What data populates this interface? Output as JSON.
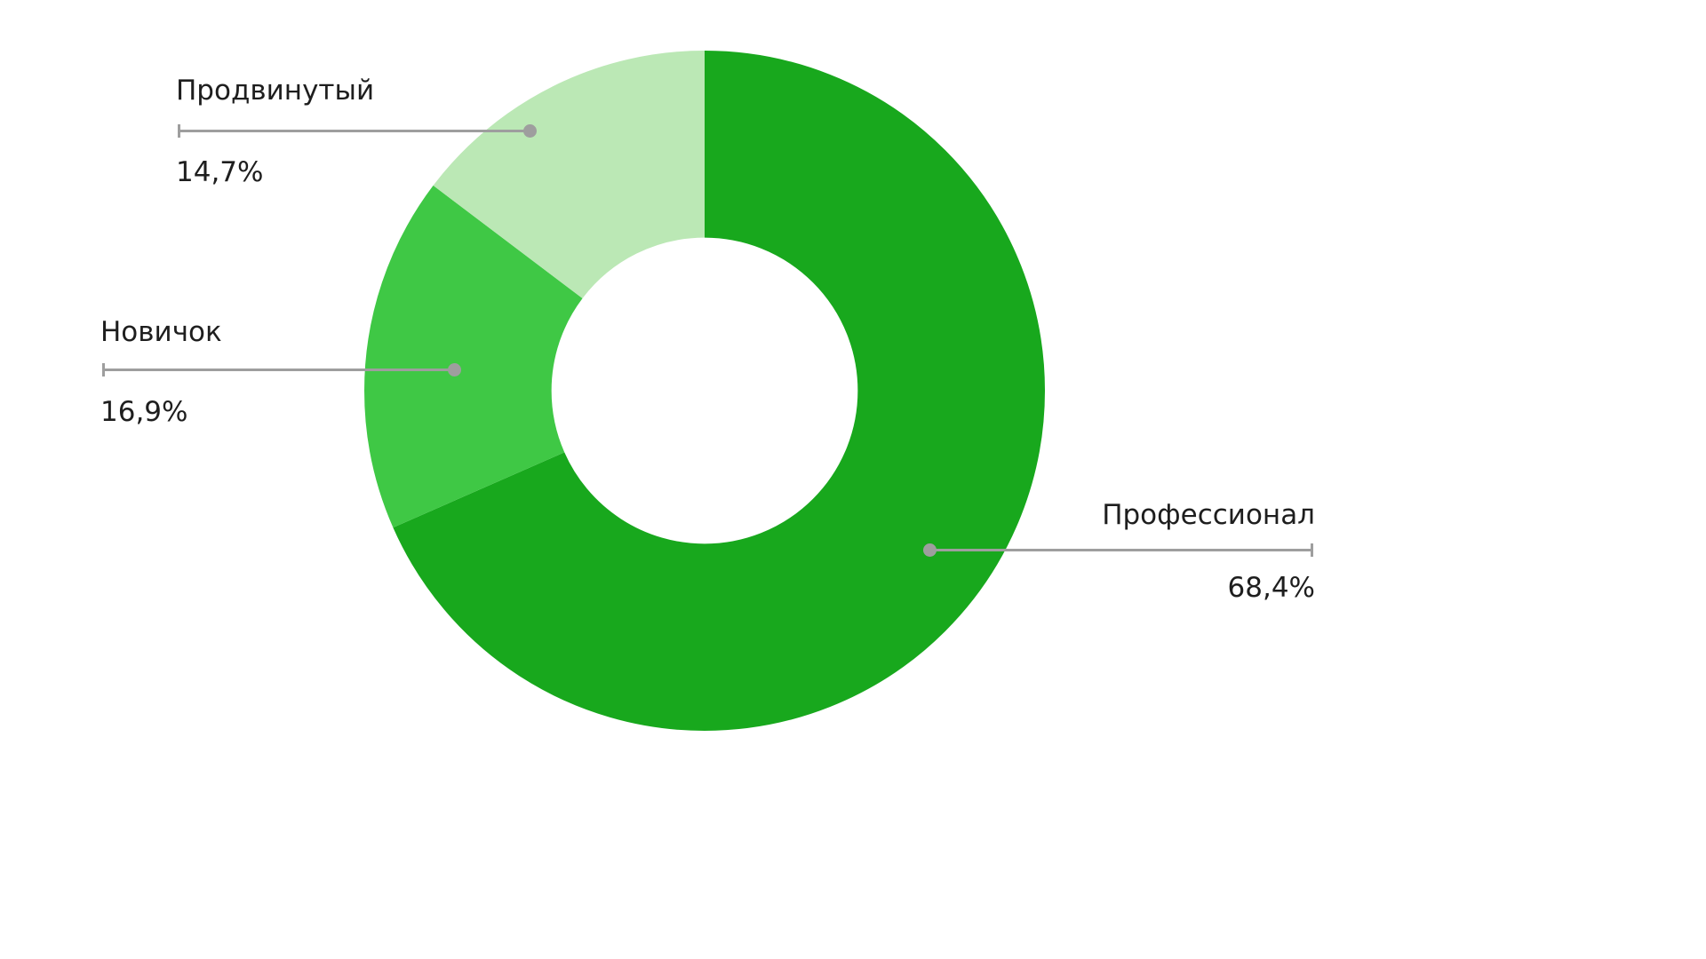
{
  "chart_data": {
    "type": "pie",
    "subtype": "donut",
    "title": "",
    "categories": [
      "Профессионал",
      "Новичок",
      "Продвинутый"
    ],
    "values": [
      68.4,
      16.9,
      14.7
    ],
    "unit": "%",
    "decimal_separator": ",",
    "start_angle_deg": 0,
    "direction": "clockwise",
    "inner_radius_ratio": 0.45,
    "legend_position": "external-callouts",
    "callout_line_color": "#9e9e9e",
    "text_color": "#1e1e1e",
    "slices": [
      {
        "label": "Профессионал",
        "value": 68.4,
        "value_label": "68,4%",
        "color": "#18A81D"
      },
      {
        "label": "Новичок",
        "value": 16.9,
        "value_label": "16,9%",
        "color": "#3FC845"
      },
      {
        "label": "Продвинутый",
        "value": 14.7,
        "value_label": "14,7%",
        "color": "#BBE8B5"
      }
    ]
  }
}
